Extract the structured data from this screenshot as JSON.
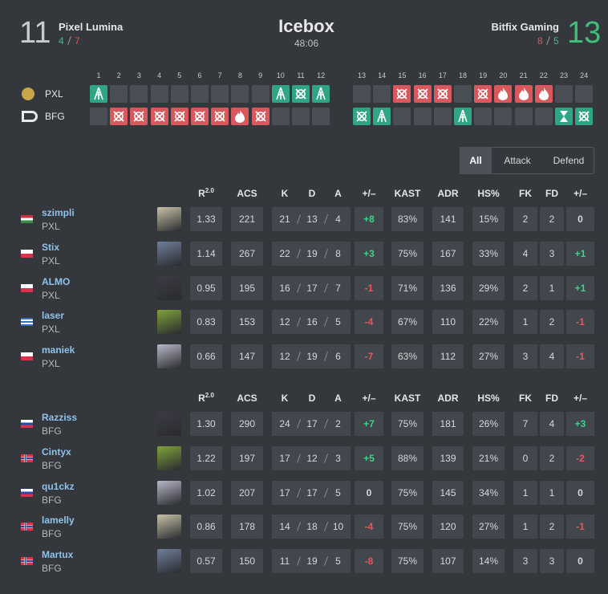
{
  "header": {
    "left": {
      "score": "11",
      "name": "Pixel Lumina",
      "half1": "4",
      "half2": "7"
    },
    "map": "Icebox",
    "duration": "48:06",
    "right": {
      "name": "Bitfix Gaming",
      "score": "13",
      "half1": "8",
      "half2": "5"
    }
  },
  "rounds": {
    "numbers": [
      "1",
      "2",
      "3",
      "4",
      "5",
      "6",
      "7",
      "8",
      "9",
      "10",
      "11",
      "12",
      "13",
      "14",
      "15",
      "16",
      "17",
      "18",
      "19",
      "20",
      "21",
      "22",
      "23",
      "24"
    ],
    "teams": [
      "PXL",
      "BFG"
    ]
  },
  "filters": [
    "All",
    "Attack",
    "Defend"
  ],
  "tables": [
    {
      "columns": [
        {
          "text": "R",
          "sup": "2.0"
        },
        "ACS",
        "K",
        "D",
        "A",
        "+/–",
        "KAST",
        "ADR",
        "HS%",
        "FK",
        "FD",
        "+/–"
      ],
      "players": [
        {
          "name": "szimpli",
          "team": "PXL",
          "stats": [
            "1.33",
            "221",
            "21",
            "13",
            "4",
            "+8",
            "83%",
            "141",
            "15%",
            "2",
            "2",
            "0"
          ]
        },
        {
          "name": "Stix",
          "team": "PXL",
          "stats": [
            "1.14",
            "267",
            "22",
            "19",
            "8",
            "+3",
            "75%",
            "167",
            "33%",
            "4",
            "3",
            "+1"
          ]
        },
        {
          "name": "ALMO",
          "team": "PXL",
          "stats": [
            "0.95",
            "195",
            "16",
            "17",
            "7",
            "-1",
            "71%",
            "136",
            "29%",
            "2",
            "1",
            "+1"
          ]
        },
        {
          "name": "laser",
          "team": "PXL",
          "stats": [
            "0.83",
            "153",
            "12",
            "16",
            "5",
            "-4",
            "67%",
            "110",
            "22%",
            "1",
            "2",
            "-1"
          ]
        },
        {
          "name": "maniek",
          "team": "PXL",
          "stats": [
            "0.66",
            "147",
            "12",
            "19",
            "6",
            "-7",
            "63%",
            "112",
            "27%",
            "3",
            "4",
            "-1"
          ]
        }
      ]
    },
    {
      "columns": [
        {
          "text": "R",
          "sup": "2.0"
        },
        "ACS",
        "K",
        "D",
        "A",
        "+/–",
        "KAST",
        "ADR",
        "HS%",
        "FK",
        "FD",
        "+/–"
      ],
      "players": [
        {
          "name": "Razziss",
          "team": "BFG",
          "stats": [
            "1.30",
            "290",
            "24",
            "17",
            "2",
            "+7",
            "75%",
            "181",
            "26%",
            "7",
            "4",
            "+3"
          ]
        },
        {
          "name": "Cintyx",
          "team": "BFG",
          "stats": [
            "1.22",
            "197",
            "17",
            "12",
            "3",
            "+5",
            "88%",
            "139",
            "21%",
            "0",
            "2",
            "-2"
          ]
        },
        {
          "name": "qu1ckz",
          "team": "BFG",
          "stats": [
            "1.02",
            "207",
            "17",
            "17",
            "5",
            "0",
            "75%",
            "145",
            "34%",
            "1",
            "1",
            "0"
          ]
        },
        {
          "name": "lamelly",
          "team": "BFG",
          "stats": [
            "0.86",
            "178",
            "14",
            "18",
            "10",
            "-4",
            "75%",
            "120",
            "27%",
            "1",
            "2",
            "-1"
          ]
        },
        {
          "name": "Martux",
          "team": "BFG",
          "stats": [
            "0.57",
            "150",
            "11",
            "19",
            "5",
            "-8",
            "75%",
            "107",
            "14%",
            "3",
            "3",
            "0"
          ]
        }
      ]
    }
  ]
}
